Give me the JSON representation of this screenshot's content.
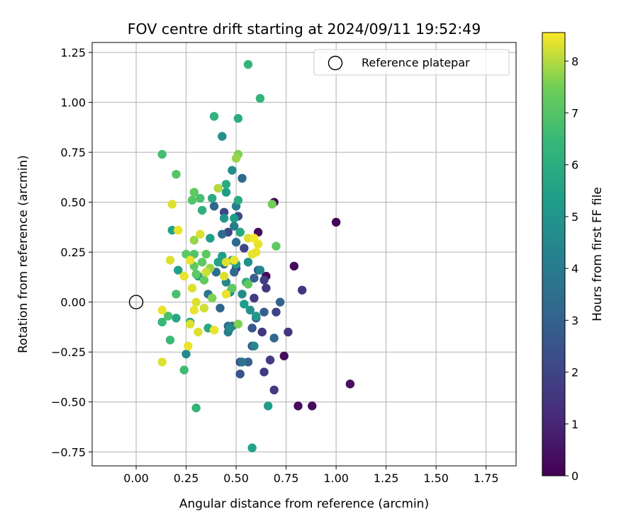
{
  "chart_data": {
    "type": "scatter",
    "title": "FOV centre drift starting at 2024/09/11 19:52:49",
    "xlabel": "Angular distance from reference (arcmin)",
    "ylabel": "Rotation from reference (arcmin)",
    "xlim": [
      -0.22,
      1.9
    ],
    "ylim": [
      -0.82,
      1.3
    ],
    "xticks": [
      0.0,
      0.25,
      0.5,
      0.75,
      1.0,
      1.25,
      1.5,
      1.75
    ],
    "xtick_labels": [
      "0.00",
      "0.25",
      "0.50",
      "0.75",
      "1.00",
      "1.25",
      "1.50",
      "1.75"
    ],
    "yticks": [
      -0.75,
      -0.5,
      -0.25,
      0.0,
      0.25,
      0.5,
      0.75,
      1.0,
      1.25
    ],
    "ytick_labels": [
      "−0.75",
      "−0.50",
      "−0.25",
      "0.00",
      "0.25",
      "0.50",
      "0.75",
      "1.00",
      "1.25"
    ],
    "grid": true,
    "legend": {
      "placement": "top-right",
      "entries": [
        {
          "label": "Reference platepar",
          "marker": "open-circle"
        }
      ]
    },
    "reference_point": {
      "x": 0.0,
      "y": 0.0
    },
    "colorbar": {
      "label": "Hours from first FF file",
      "range": [
        0,
        8.55
      ],
      "ticks": [
        0,
        1,
        2,
        3,
        4,
        5,
        6,
        7,
        8
      ],
      "tick_labels": [
        "0",
        "1",
        "2",
        "3",
        "4",
        "5",
        "6",
        "7",
        "8"
      ],
      "colormap": "viridis"
    },
    "points": [
      {
        "x": 0.69,
        "y": 0.5,
        "hours": 0.1
      },
      {
        "x": 0.61,
        "y": 0.35,
        "hours": 0.3
      },
      {
        "x": 0.65,
        "y": 0.13,
        "hours": 0.2
      },
      {
        "x": 0.79,
        "y": 0.18,
        "hours": 0.3
      },
      {
        "x": 0.74,
        "y": -0.27,
        "hours": 0.3
      },
      {
        "x": 0.81,
        "y": -0.52,
        "hours": 0.3
      },
      {
        "x": 0.88,
        "y": -0.52,
        "hours": 0.3
      },
      {
        "x": 1.0,
        "y": 0.4,
        "hours": 0.1
      },
      {
        "x": 1.07,
        "y": -0.41,
        "hours": 0.4
      },
      {
        "x": 0.83,
        "y": 0.06,
        "hours": 1.5
      },
      {
        "x": 0.76,
        "y": -0.15,
        "hours": 1.5
      },
      {
        "x": 0.67,
        "y": -0.29,
        "hours": 1.7
      },
      {
        "x": 0.69,
        "y": -0.44,
        "hours": 1.7
      },
      {
        "x": 0.64,
        "y": -0.35,
        "hours": 1.7
      },
      {
        "x": 0.63,
        "y": -0.15,
        "hours": 1.5
      },
      {
        "x": 0.65,
        "y": 0.07,
        "hours": 1.6
      },
      {
        "x": 0.7,
        "y": -0.05,
        "hours": 1.9
      },
      {
        "x": 0.59,
        "y": 0.02,
        "hours": 1.7
      },
      {
        "x": 0.64,
        "y": 0.11,
        "hours": 1.8
      },
      {
        "x": 0.5,
        "y": 0.17,
        "hours": 1.7
      },
      {
        "x": 0.54,
        "y": 0.27,
        "hours": 2.0
      },
      {
        "x": 0.44,
        "y": 0.45,
        "hours": 2.0
      },
      {
        "x": 0.51,
        "y": 0.43,
        "hours": 2.2
      },
      {
        "x": 0.46,
        "y": 0.35,
        "hours": 2.1
      },
      {
        "x": 0.58,
        "y": -0.22,
        "hours": 2.5
      },
      {
        "x": 0.58,
        "y": -0.13,
        "hours": 2.6
      },
      {
        "x": 0.6,
        "y": -0.08,
        "hours": 2.9
      },
      {
        "x": 0.64,
        "y": -0.05,
        "hours": 2.9
      },
      {
        "x": 0.72,
        "y": 0.0,
        "hours": 3.1
      },
      {
        "x": 0.69,
        "y": -0.18,
        "hours": 3.2
      },
      {
        "x": 0.59,
        "y": -0.22,
        "hours": 4.5
      },
      {
        "x": 0.56,
        "y": -0.3,
        "hours": 3.0
      },
      {
        "x": 0.52,
        "y": -0.3,
        "hours": 2.4
      },
      {
        "x": 0.52,
        "y": -0.36,
        "hours": 2.6
      },
      {
        "x": 0.61,
        "y": 0.16,
        "hours": 2.9
      },
      {
        "x": 0.59,
        "y": 0.12,
        "hours": 3.0
      },
      {
        "x": 0.53,
        "y": 0.62,
        "hours": 3.2
      },
      {
        "x": 0.5,
        "y": 0.3,
        "hours": 3.3
      },
      {
        "x": 0.49,
        "y": 0.15,
        "hours": 3.2
      },
      {
        "x": 0.43,
        "y": 0.34,
        "hours": 3.4
      },
      {
        "x": 0.39,
        "y": 0.48,
        "hours": 3.1
      },
      {
        "x": 0.42,
        "y": -0.03,
        "hours": 3.1
      },
      {
        "x": 0.46,
        "y": -0.12,
        "hours": 3.2
      },
      {
        "x": 0.48,
        "y": -0.12,
        "hours": 3.3
      },
      {
        "x": 0.46,
        "y": -0.15,
        "hours": 4.1
      },
      {
        "x": 0.47,
        "y": -0.13,
        "hours": 4.6
      },
      {
        "x": 0.36,
        "y": 0.04,
        "hours": 3.8
      },
      {
        "x": 0.4,
        "y": 0.15,
        "hours": 3.4
      },
      {
        "x": 0.44,
        "y": 0.19,
        "hours": 3.5
      },
      {
        "x": 0.53,
        "y": -0.3,
        "hours": 3.7
      },
      {
        "x": 0.25,
        "y": -0.26,
        "hours": 4.6
      },
      {
        "x": 0.5,
        "y": 0.48,
        "hours": 4.1
      },
      {
        "x": 0.49,
        "y": 0.38,
        "hours": 4.0
      },
      {
        "x": 0.52,
        "y": 0.35,
        "hours": 4.3
      },
      {
        "x": 0.48,
        "y": 0.66,
        "hours": 4.7
      },
      {
        "x": 0.43,
        "y": 0.83,
        "hours": 4.8
      },
      {
        "x": 0.56,
        "y": 0.2,
        "hours": 4.8
      },
      {
        "x": 0.62,
        "y": 0.16,
        "hours": 4.4
      },
      {
        "x": 0.45,
        "y": 0.1,
        "hours": 4.5
      },
      {
        "x": 0.47,
        "y": 0.05,
        "hours": 4.8
      },
      {
        "x": 0.57,
        "y": -0.04,
        "hours": 4.9
      },
      {
        "x": 0.53,
        "y": 0.04,
        "hours": 4.6
      },
      {
        "x": 0.54,
        "y": -0.01,
        "hours": 5.3
      },
      {
        "x": 0.6,
        "y": -0.07,
        "hours": 5.1
      },
      {
        "x": 0.45,
        "y": 0.55,
        "hours": 5.3
      },
      {
        "x": 0.49,
        "y": 0.42,
        "hours": 5.3
      },
      {
        "x": 0.37,
        "y": 0.32,
        "hours": 5.4
      },
      {
        "x": 0.44,
        "y": 0.42,
        "hours": 5.0
      },
      {
        "x": 0.48,
        "y": 0.21,
        "hours": 5.2
      },
      {
        "x": 0.43,
        "y": 0.23,
        "hours": 5.4
      },
      {
        "x": 0.41,
        "y": 0.2,
        "hours": 5.5
      },
      {
        "x": 0.5,
        "y": 0.19,
        "hours": 5.2
      },
      {
        "x": 0.66,
        "y": -0.52,
        "hours": 5.3
      },
      {
        "x": 0.58,
        "y": -0.73,
        "hours": 5.6
      },
      {
        "x": 0.27,
        "y": -0.1,
        "hours": 5.7
      },
      {
        "x": 0.2,
        "y": -0.08,
        "hours": 5.7
      },
      {
        "x": 0.18,
        "y": 0.36,
        "hours": 5.5
      },
      {
        "x": 0.21,
        "y": 0.16,
        "hours": 5.5
      },
      {
        "x": 0.31,
        "y": 0.13,
        "hours": 5.5
      },
      {
        "x": 0.36,
        "y": -0.13,
        "hours": 5.8
      },
      {
        "x": 0.51,
        "y": 0.51,
        "hours": 5.9
      },
      {
        "x": 0.52,
        "y": 0.35,
        "hours": 5.8
      },
      {
        "x": 0.45,
        "y": 0.59,
        "hours": 5.9
      },
      {
        "x": 0.38,
        "y": 0.52,
        "hours": 5.9
      },
      {
        "x": 0.33,
        "y": 0.46,
        "hours": 6.1
      },
      {
        "x": 0.55,
        "y": 0.1,
        "hours": 6.0
      },
      {
        "x": 0.51,
        "y": 0.92,
        "hours": 6.0
      },
      {
        "x": 0.39,
        "y": 0.93,
        "hours": 6.2
      },
      {
        "x": 0.56,
        "y": 1.19,
        "hours": 6.3
      },
      {
        "x": 0.62,
        "y": 1.02,
        "hours": 6.3
      },
      {
        "x": 0.3,
        "y": -0.53,
        "hours": 6.3
      },
      {
        "x": 0.24,
        "y": -0.34,
        "hours": 6.6
      },
      {
        "x": 0.17,
        "y": -0.19,
        "hours": 6.5
      },
      {
        "x": 0.13,
        "y": -0.1,
        "hours": 6.4
      },
      {
        "x": 0.16,
        "y": -0.07,
        "hours": 6.8
      },
      {
        "x": 0.2,
        "y": 0.04,
        "hours": 6.8
      },
      {
        "x": 0.13,
        "y": 0.74,
        "hours": 6.7
      },
      {
        "x": 0.2,
        "y": 0.64,
        "hours": 7.0
      },
      {
        "x": 0.29,
        "y": 0.55,
        "hours": 7.2
      },
      {
        "x": 0.28,
        "y": 0.51,
        "hours": 7.0
      },
      {
        "x": 0.32,
        "y": 0.52,
        "hours": 6.8
      },
      {
        "x": 0.25,
        "y": 0.24,
        "hours": 7.1
      },
      {
        "x": 0.29,
        "y": 0.24,
        "hours": 7.0
      },
      {
        "x": 0.3,
        "y": 0.14,
        "hours": 7.2
      },
      {
        "x": 0.29,
        "y": 0.18,
        "hours": 7.2
      },
      {
        "x": 0.35,
        "y": 0.24,
        "hours": 7.2
      },
      {
        "x": 0.34,
        "y": 0.11,
        "hours": 7.3
      },
      {
        "x": 0.33,
        "y": 0.2,
        "hours": 7.2
      },
      {
        "x": 0.48,
        "y": 0.07,
        "hours": 7.2
      },
      {
        "x": 0.56,
        "y": 0.09,
        "hours": 7.2
      },
      {
        "x": 0.7,
        "y": 0.28,
        "hours": 7.2
      },
      {
        "x": 0.68,
        "y": 0.49,
        "hours": 7.5
      },
      {
        "x": 0.51,
        "y": 0.74,
        "hours": 7.6
      },
      {
        "x": 0.5,
        "y": 0.72,
        "hours": 7.8
      },
      {
        "x": 0.51,
        "y": -0.11,
        "hours": 7.6
      },
      {
        "x": 0.29,
        "y": 0.31,
        "hours": 7.8
      },
      {
        "x": 0.37,
        "y": 0.17,
        "hours": 7.8
      },
      {
        "x": 0.38,
        "y": 0.02,
        "hours": 7.6
      },
      {
        "x": 0.41,
        "y": 0.57,
        "hours": 8.0
      },
      {
        "x": 0.18,
        "y": 0.49,
        "hours": 8.3
      },
      {
        "x": 0.21,
        "y": 0.36,
        "hours": 8.4
      },
      {
        "x": 0.17,
        "y": 0.21,
        "hours": 8.3
      },
      {
        "x": 0.24,
        "y": 0.13,
        "hours": 8.4
      },
      {
        "x": 0.27,
        "y": 0.21,
        "hours": 8.4
      },
      {
        "x": 0.32,
        "y": 0.34,
        "hours": 8.3
      },
      {
        "x": 0.28,
        "y": 0.07,
        "hours": 8.3
      },
      {
        "x": 0.3,
        "y": 0.0,
        "hours": 8.3
      },
      {
        "x": 0.29,
        "y": -0.04,
        "hours": 8.4
      },
      {
        "x": 0.34,
        "y": -0.03,
        "hours": 8.2
      },
      {
        "x": 0.27,
        "y": -0.11,
        "hours": 8.3
      },
      {
        "x": 0.31,
        "y": -0.15,
        "hours": 8.3
      },
      {
        "x": 0.39,
        "y": -0.14,
        "hours": 8.4
      },
      {
        "x": 0.26,
        "y": -0.22,
        "hours": 8.4
      },
      {
        "x": 0.13,
        "y": -0.04,
        "hours": 8.4
      },
      {
        "x": 0.13,
        "y": -0.3,
        "hours": 8.3
      },
      {
        "x": 0.35,
        "y": 0.15,
        "hours": 8.2
      },
      {
        "x": 0.44,
        "y": 0.13,
        "hours": 8.3
      },
      {
        "x": 0.45,
        "y": 0.04,
        "hours": 8.4
      },
      {
        "x": 0.49,
        "y": 0.21,
        "hours": 8.4
      },
      {
        "x": 0.45,
        "y": 0.2,
        "hours": 8.3
      },
      {
        "x": 0.56,
        "y": 0.32,
        "hours": 8.3
      },
      {
        "x": 0.59,
        "y": 0.32,
        "hours": 8.5
      },
      {
        "x": 0.61,
        "y": 0.29,
        "hours": 8.4
      },
      {
        "x": 0.6,
        "y": 0.25,
        "hours": 8.4
      },
      {
        "x": 0.58,
        "y": 0.24,
        "hours": 8.4
      }
    ]
  }
}
